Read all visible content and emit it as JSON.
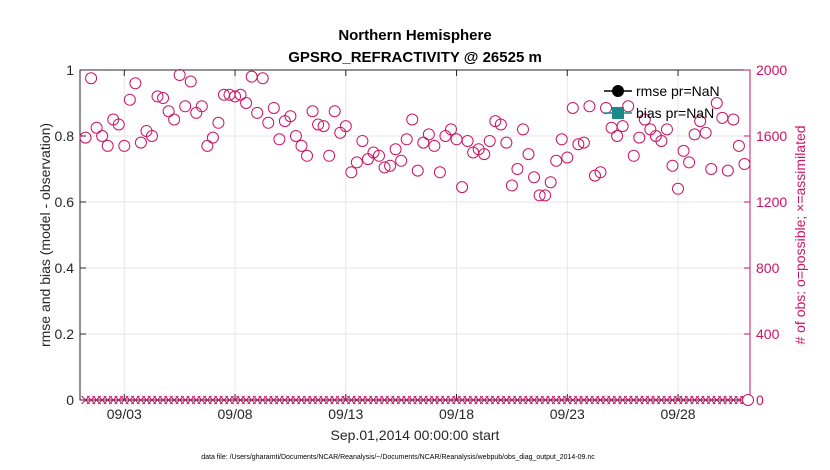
{
  "chart_data": {
    "type": "scatter",
    "title": "Northern Hemisphere",
    "subtitle": "GPSRO_REFRACTIVITY @ 26525 m",
    "xlabel": "Sep.01,2014 00:00:00 start",
    "ylabel": "rmse and bias (model - observation)",
    "ylabel_right": "# of obs: o=possible; ×=assimilated",
    "footnote": "data file: /Users/gharamti/Documents/NCAR/Reanalysis/~/Documents/NCAR/Reanalysis/webpub/obs_diag_output_2014-09.nc",
    "xlim": [
      0.5,
      30.75
    ],
    "ylim": [
      0,
      1
    ],
    "ylim_right": [
      0,
      2000
    ],
    "x_ticks": [
      {
        "value": 2.5,
        "label": "09/03"
      },
      {
        "value": 7.5,
        "label": "09/08"
      },
      {
        "value": 12.5,
        "label": "09/13"
      },
      {
        "value": 17.5,
        "label": "09/18"
      },
      {
        "value": 22.5,
        "label": "09/23"
      },
      {
        "value": 27.5,
        "label": "09/28"
      }
    ],
    "y_ticks": [
      {
        "value": 0,
        "label": "0"
      },
      {
        "value": 0.2,
        "label": "0.2"
      },
      {
        "value": 0.4,
        "label": "0.4"
      },
      {
        "value": 0.6,
        "label": "0.6"
      },
      {
        "value": 0.8,
        "label": "0.8"
      },
      {
        "value": 1,
        "label": "1"
      }
    ],
    "y_ticks_right": [
      {
        "value": 0,
        "label": "0"
      },
      {
        "value": 400,
        "label": "400"
      },
      {
        "value": 800,
        "label": "800"
      },
      {
        "value": 1200,
        "label": "1200"
      },
      {
        "value": 1600,
        "label": "1600"
      },
      {
        "value": 2000,
        "label": "2000"
      }
    ],
    "grid": true,
    "legend_position": "top-right",
    "legend": [
      {
        "label": "rmse pr=NaN",
        "color": "#000000",
        "marker": "circle-filled"
      },
      {
        "label": "bias pr=NaN",
        "color": "#1a8a8a",
        "marker": "square-filled"
      }
    ],
    "series": [
      {
        "name": "possible",
        "axis": "right",
        "marker": "circle-open",
        "color": "#cc1366",
        "x": [
          0.75,
          1.0,
          1.25,
          1.5,
          1.75,
          2.0,
          2.25,
          2.5,
          2.75,
          3.0,
          3.25,
          3.5,
          3.75,
          4.0,
          4.25,
          4.5,
          4.75,
          5.0,
          5.25,
          5.5,
          5.75,
          6.0,
          6.25,
          6.5,
          6.75,
          7.0,
          7.25,
          7.5,
          7.75,
          8.0,
          8.25,
          8.5,
          8.75,
          9.0,
          9.25,
          9.5,
          9.75,
          10.0,
          10.25,
          10.5,
          10.75,
          11.0,
          11.25,
          11.5,
          11.75,
          12.0,
          12.25,
          12.5,
          12.75,
          13.0,
          13.25,
          13.5,
          13.75,
          14.0,
          14.25,
          14.5,
          14.75,
          15.0,
          15.25,
          15.5,
          15.75,
          16.0,
          16.25,
          16.5,
          16.75,
          17.0,
          17.25,
          17.5,
          17.75,
          18.0,
          18.25,
          18.5,
          18.75,
          19.0,
          19.25,
          19.5,
          19.75,
          20.0,
          20.25,
          20.5,
          20.75,
          21.0,
          21.25,
          21.5,
          21.75,
          22.0,
          22.25,
          22.5,
          22.75,
          23.0,
          23.25,
          23.5,
          23.75,
          24.0,
          24.25,
          24.5,
          24.75,
          25.0,
          25.25,
          25.5,
          25.75,
          26.0,
          26.25,
          26.5,
          26.75,
          27.0,
          27.25,
          27.5,
          27.75,
          28.0,
          28.25,
          28.5,
          28.75,
          29.0,
          29.25,
          29.5,
          29.75,
          30.0,
          30.25,
          30.5
        ],
        "values": [
          1590,
          1950,
          1650,
          1600,
          1540,
          1700,
          1670,
          1540,
          1820,
          1920,
          1560,
          1630,
          1600,
          1840,
          1830,
          1750,
          1700,
          1970,
          1780,
          1930,
          1740,
          1780,
          1540,
          1590,
          1680,
          1850,
          1850,
          1840,
          1850,
          1800,
          1960,
          1740,
          1950,
          1680,
          1770,
          1580,
          1690,
          1720,
          1600,
          1540,
          1480,
          1750,
          1670,
          1660,
          1480,
          1750,
          1620,
          1660,
          1380,
          1440,
          1570,
          1460,
          1500,
          1480,
          1410,
          1420,
          1520,
          1450,
          1580,
          1700,
          1390,
          1560,
          1610,
          1540,
          1380,
          1600,
          1640,
          1580,
          1290,
          1570,
          1500,
          1520,
          1490,
          1570,
          1690,
          1670,
          1560,
          1300,
          1400,
          1640,
          1490,
          1350,
          1240,
          1240,
          1320,
          1450,
          1580,
          1470,
          1770,
          1550,
          1560,
          1780,
          1360,
          1380,
          1770,
          1650,
          1600,
          1660,
          1780,
          1480,
          1590,
          1700,
          1640,
          1600,
          1570,
          1640,
          1420,
          1280,
          1510,
          1440,
          1610,
          1690,
          1620,
          1400,
          1800,
          1710,
          1390,
          1700,
          1540,
          1430
        ]
      },
      {
        "name": "assimilated",
        "axis": "right",
        "marker": "x",
        "color": "#cc1366",
        "x_start": 0.75,
        "x_step": 0.25,
        "count": 120,
        "value": 0
      }
    ]
  }
}
